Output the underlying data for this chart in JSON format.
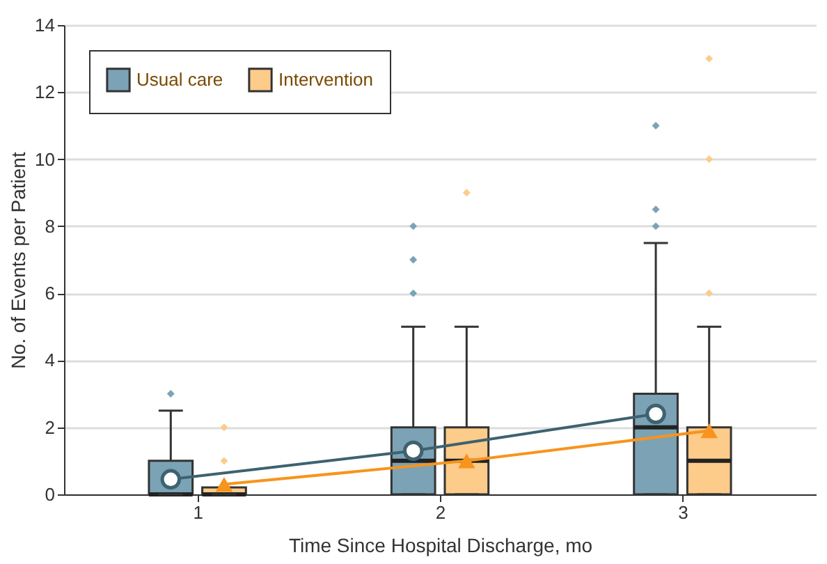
{
  "chart_data": {
    "type": "box",
    "xlabel": "Time Since Hospital Discharge, mo",
    "ylabel": "No. of Events per Patient",
    "categories": [
      "1",
      "2",
      "3"
    ],
    "ylim": [
      0,
      14
    ],
    "yticks": [
      0,
      2,
      4,
      6,
      8,
      10,
      12,
      14
    ],
    "grid": "y",
    "legend": "top left",
    "series": [
      {
        "name": "Usual care",
        "color": "#7ba3b5",
        "boxes": [
          {
            "low": 0,
            "q1": 0,
            "median": 0,
            "q3": 1,
            "high": 2.5,
            "outliers": [
              3
            ]
          },
          {
            "low": 0,
            "q1": 0,
            "median": 1,
            "q3": 2,
            "high": 5,
            "outliers": [
              6,
              7,
              8
            ]
          },
          {
            "low": 0,
            "q1": 0,
            "median": 2,
            "q3": 3,
            "high": 7.5,
            "outliers": [
              8,
              8.5,
              11
            ]
          }
        ]
      },
      {
        "name": "Intervention",
        "color": "#fdcb8a",
        "boxes": [
          {
            "low": 0,
            "q1": 0,
            "median": 0,
            "q3": 0,
            "high": 0,
            "outliers": [
              1,
              2
            ]
          },
          {
            "low": 0,
            "q1": 0,
            "median": 1,
            "q3": 2,
            "high": 5,
            "outliers": [
              9
            ]
          },
          {
            "low": 0,
            "q1": 0,
            "median": 1,
            "q3": 2,
            "high": 5,
            "outliers": [
              6,
              10,
              13
            ]
          }
        ]
      },
      {
        "type": "line",
        "color": "#3d6270",
        "marker": "circle",
        "values": [
          0.45,
          1.3,
          2.4
        ]
      },
      {
        "type": "line",
        "color": "#f7941d",
        "marker": "triangle",
        "values": [
          0.3,
          1.0,
          1.9
        ]
      }
    ]
  }
}
